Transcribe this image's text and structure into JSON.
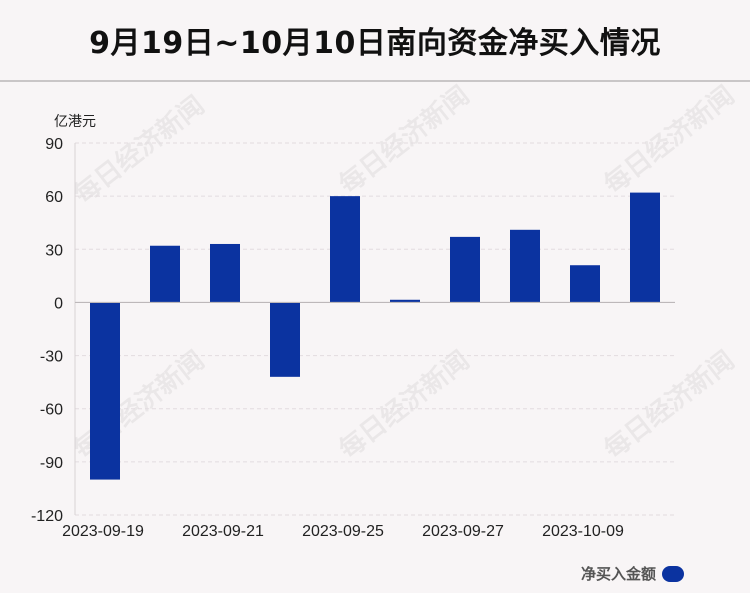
{
  "header": {
    "title": "9月19日~10月10日南向资金净买入情况"
  },
  "watermark": "每日经济新闻",
  "chart_data": {
    "type": "bar",
    "title": "9月19日~10月10日南向资金净买入情况",
    "unit_label": "亿港元",
    "ylim": [
      -120,
      90
    ],
    "yticks": [
      90,
      60,
      30,
      0,
      -30,
      -60,
      -90,
      -120
    ],
    "x_tick_labels": [
      "2023-09-19",
      "2023-09-21",
      "2023-09-25",
      "2023-09-27",
      "2023-10-09"
    ],
    "series": [
      {
        "name": "净买入金额",
        "color": "#0b33a0",
        "values": [
          -100,
          32,
          33,
          -42,
          60,
          1.5,
          37,
          41,
          21,
          62
        ]
      }
    ],
    "grid": true,
    "legend_position": "bottom-right"
  }
}
